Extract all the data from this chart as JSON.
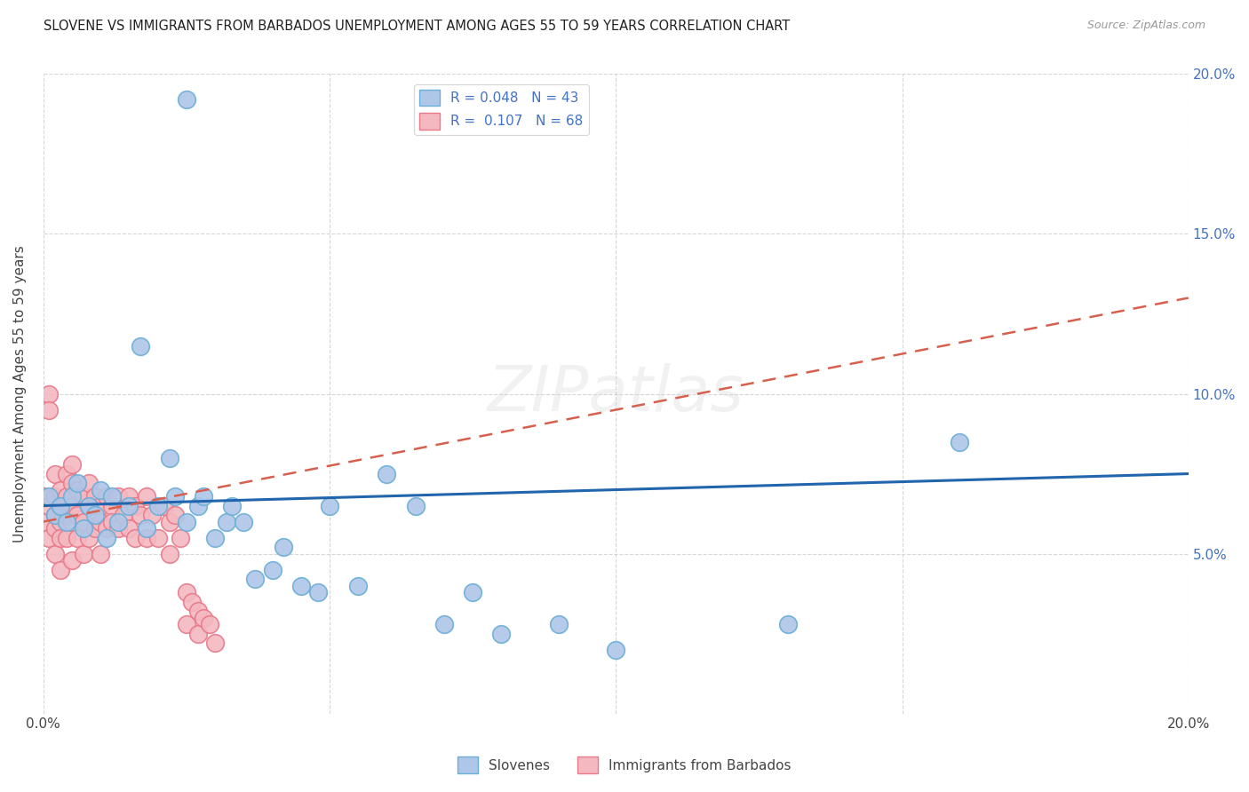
{
  "title": "SLOVENE VS IMMIGRANTS FROM BARBADOS UNEMPLOYMENT AMONG AGES 55 TO 59 YEARS CORRELATION CHART",
  "source": "Source: ZipAtlas.com",
  "ylabel": "Unemployment Among Ages 55 to 59 years",
  "xlim": [
    0.0,
    0.2
  ],
  "ylim": [
    0.0,
    0.2
  ],
  "xticks": [
    0.0,
    0.05,
    0.1,
    0.15,
    0.2
  ],
  "yticks": [
    0.0,
    0.05,
    0.1,
    0.15,
    0.2
  ],
  "grid_color": "#cccccc",
  "background_color": "#ffffff",
  "slovene_color": "#aec6e8",
  "barbados_color": "#f4b8c1",
  "slovene_edge_color": "#6baed6",
  "barbados_edge_color": "#e87a8a",
  "slovene_line_color": "#2166ac",
  "barbados_line_color": "#d6604d",
  "R_slovene": 0.048,
  "N_slovene": 43,
  "R_barbados": 0.107,
  "N_barbados": 68,
  "legend_label_slovene": "Slovenes",
  "legend_label_barbados": "Immigrants from Barbados",
  "slovene_x": [
    0.025,
    0.001,
    0.002,
    0.003,
    0.004,
    0.005,
    0.006,
    0.007,
    0.008,
    0.009,
    0.01,
    0.011,
    0.012,
    0.013,
    0.015,
    0.017,
    0.018,
    0.02,
    0.022,
    0.023,
    0.025,
    0.027,
    0.028,
    0.03,
    0.032,
    0.033,
    0.035,
    0.037,
    0.04,
    0.042,
    0.045,
    0.048,
    0.05,
    0.055,
    0.06,
    0.065,
    0.07,
    0.075,
    0.08,
    0.09,
    0.1,
    0.13,
    0.16
  ],
  "slovene_y": [
    0.192,
    0.068,
    0.062,
    0.065,
    0.06,
    0.068,
    0.072,
    0.058,
    0.065,
    0.062,
    0.07,
    0.055,
    0.068,
    0.06,
    0.065,
    0.115,
    0.058,
    0.065,
    0.08,
    0.068,
    0.06,
    0.065,
    0.068,
    0.055,
    0.06,
    0.065,
    0.06,
    0.042,
    0.045,
    0.052,
    0.04,
    0.038,
    0.065,
    0.04,
    0.075,
    0.065,
    0.028,
    0.038,
    0.025,
    0.028,
    0.02,
    0.028,
    0.085
  ],
  "barbados_x": [
    0.0,
    0.0,
    0.001,
    0.001,
    0.001,
    0.001,
    0.002,
    0.002,
    0.002,
    0.002,
    0.002,
    0.003,
    0.003,
    0.003,
    0.003,
    0.003,
    0.004,
    0.004,
    0.004,
    0.004,
    0.005,
    0.005,
    0.005,
    0.005,
    0.005,
    0.006,
    0.006,
    0.006,
    0.007,
    0.007,
    0.007,
    0.008,
    0.008,
    0.008,
    0.009,
    0.009,
    0.01,
    0.01,
    0.01,
    0.011,
    0.011,
    0.012,
    0.012,
    0.013,
    0.013,
    0.014,
    0.015,
    0.015,
    0.016,
    0.016,
    0.017,
    0.018,
    0.018,
    0.019,
    0.02,
    0.021,
    0.022,
    0.022,
    0.023,
    0.024,
    0.025,
    0.025,
    0.026,
    0.027,
    0.027,
    0.028,
    0.029,
    0.03
  ],
  "barbados_y": [
    0.068,
    0.06,
    0.1,
    0.095,
    0.065,
    0.055,
    0.075,
    0.068,
    0.062,
    0.058,
    0.05,
    0.07,
    0.065,
    0.06,
    0.055,
    0.045,
    0.075,
    0.068,
    0.062,
    0.055,
    0.078,
    0.072,
    0.065,
    0.06,
    0.048,
    0.07,
    0.062,
    0.055,
    0.068,
    0.06,
    0.05,
    0.072,
    0.065,
    0.055,
    0.068,
    0.058,
    0.065,
    0.06,
    0.05,
    0.068,
    0.058,
    0.065,
    0.06,
    0.068,
    0.058,
    0.062,
    0.068,
    0.058,
    0.065,
    0.055,
    0.062,
    0.068,
    0.055,
    0.062,
    0.055,
    0.065,
    0.06,
    0.05,
    0.062,
    0.055,
    0.038,
    0.028,
    0.035,
    0.032,
    0.025,
    0.03,
    0.028,
    0.022
  ],
  "slovene_trend_x": [
    0.0,
    0.2
  ],
  "slovene_trend_y": [
    0.065,
    0.075
  ],
  "barbados_trend_x": [
    0.0,
    0.2
  ],
  "barbados_trend_y": [
    0.06,
    0.13
  ]
}
